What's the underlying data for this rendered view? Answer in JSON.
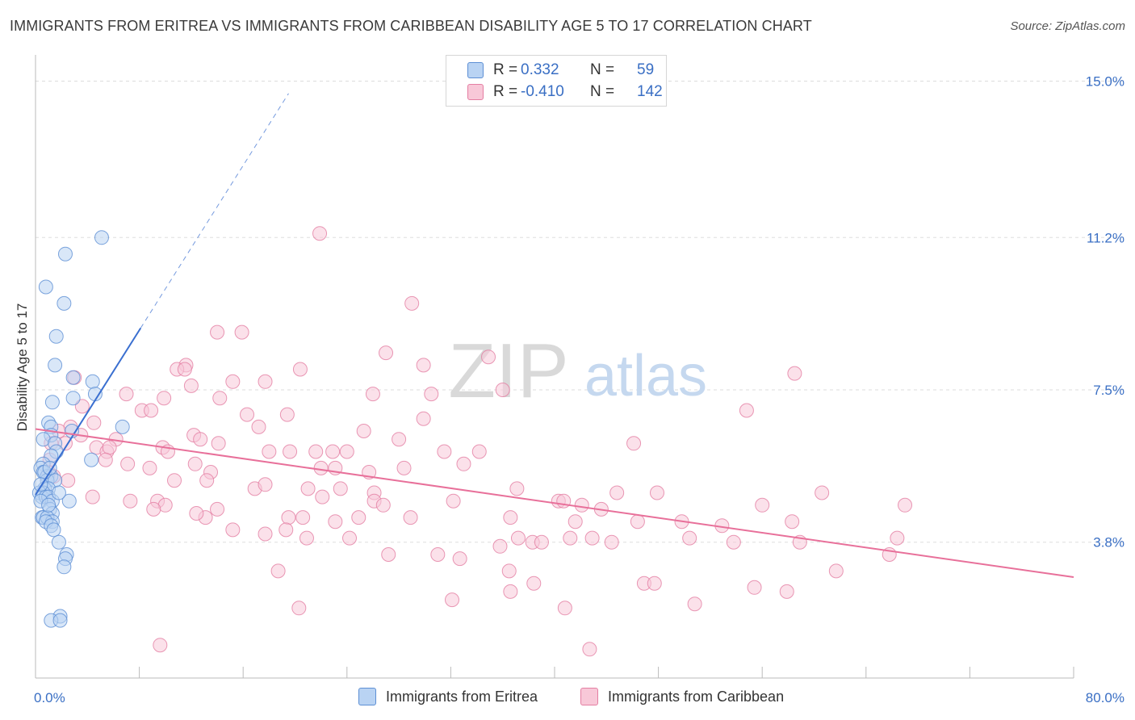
{
  "title": "IMMIGRANTS FROM ERITREA VS IMMIGRANTS FROM CARIBBEAN DISABILITY AGE 5 TO 17 CORRELATION CHART",
  "source": "Source: ZipAtlas.com",
  "watermark": {
    "part1": "ZIP",
    "part2": "atlas"
  },
  "legend_top": {
    "rows": [
      {
        "r_label": "R =",
        "r_value": "0.332",
        "n_label": "N =",
        "n_value": "59"
      },
      {
        "r_label": "R =",
        "r_value": "-0.410",
        "n_label": "N =",
        "n_value": "142"
      }
    ]
  },
  "legend_bottom": {
    "items": [
      "Immigrants from Eritrea",
      "Immigrants from Caribbean"
    ]
  },
  "colors": {
    "blue_fill": "#b9d3f3",
    "blue_stroke": "#5d8fd4",
    "blue_line": "#3a6fd0",
    "pink_fill": "#f8c8d8",
    "pink_stroke": "#e47ea2",
    "pink_line": "#e8709a",
    "axis_label": "#3a6fc4",
    "grid": "#dddddd"
  },
  "chart_data": {
    "type": "scatter",
    "title": "IMMIGRANTS FROM ERITREA VS IMMIGRANTS FROM CARIBBEAN DISABILITY AGE 5 TO 17 CORRELATION CHART",
    "xlabel": "",
    "ylabel": "Disability Age 5 to 17",
    "xlim": [
      0,
      80
    ],
    "ylim": [
      0.5,
      15.5
    ],
    "x_tick_labels": [
      {
        "value": 0,
        "label": "0.0%"
      },
      {
        "value": 80,
        "label": "80.0%"
      }
    ],
    "y_ticks": [
      {
        "value": 3.8,
        "label": "3.8%"
      },
      {
        "value": 7.5,
        "label": "7.5%"
      },
      {
        "value": 11.2,
        "label": "11.2%"
      },
      {
        "value": 15.0,
        "label": "15.0%"
      }
    ],
    "series": [
      {
        "name": "Immigrants from Eritrea",
        "R": 0.332,
        "N": 59,
        "trend": {
          "x0": 0,
          "y0": 4.95,
          "x1": 8.1,
          "y1": 9.0,
          "x_dash_end": 19.5
        },
        "points": [
          [
            5.1,
            11.2
          ],
          [
            2.3,
            10.8
          ],
          [
            0.8,
            10.0
          ],
          [
            2.2,
            9.6
          ],
          [
            1.6,
            8.8
          ],
          [
            1.5,
            8.1
          ],
          [
            2.9,
            7.8
          ],
          [
            4.4,
            7.7
          ],
          [
            4.6,
            7.4
          ],
          [
            2.9,
            7.3
          ],
          [
            1.3,
            7.2
          ],
          [
            1.0,
            6.7
          ],
          [
            1.2,
            6.6
          ],
          [
            6.7,
            6.6
          ],
          [
            2.8,
            6.5
          ],
          [
            1.2,
            6.4
          ],
          [
            0.6,
            6.3
          ],
          [
            1.5,
            6.2
          ],
          [
            1.6,
            6.0
          ],
          [
            1.2,
            5.9
          ],
          [
            4.3,
            5.8
          ],
          [
            0.6,
            5.7
          ],
          [
            0.4,
            5.6
          ],
          [
            0.6,
            5.5
          ],
          [
            0.9,
            5.4
          ],
          [
            1.2,
            5.4
          ],
          [
            0.9,
            5.3
          ],
          [
            1.5,
            5.3
          ],
          [
            0.7,
            5.1
          ],
          [
            1.0,
            5.1
          ],
          [
            0.6,
            5.0
          ],
          [
            0.3,
            5.0
          ],
          [
            0.5,
            4.9
          ],
          [
            0.8,
            4.9
          ],
          [
            1.0,
            4.9
          ],
          [
            1.3,
            4.8
          ],
          [
            0.4,
            4.8
          ],
          [
            2.6,
            4.8
          ],
          [
            1.1,
            4.6
          ],
          [
            1.3,
            4.5
          ],
          [
            0.5,
            4.4
          ],
          [
            0.6,
            4.4
          ],
          [
            0.9,
            4.4
          ],
          [
            1.3,
            4.3
          ],
          [
            0.8,
            4.3
          ],
          [
            1.2,
            4.2
          ],
          [
            1.4,
            4.1
          ],
          [
            1.8,
            3.8
          ],
          [
            2.4,
            3.5
          ],
          [
            2.3,
            3.4
          ],
          [
            2.2,
            3.2
          ],
          [
            1.9,
            2.0
          ],
          [
            1.2,
            1.9
          ],
          [
            1.9,
            1.9
          ],
          [
            0.7,
            5.5
          ],
          [
            1.1,
            5.6
          ],
          [
            0.4,
            5.2
          ],
          [
            1.8,
            5.0
          ],
          [
            1.0,
            4.7
          ]
        ]
      },
      {
        "name": "Immigrants from Caribbean",
        "R": -0.41,
        "N": 142,
        "trend": {
          "x0": 0,
          "y0": 6.55,
          "x1": 80,
          "y1": 2.95
        },
        "points": [
          [
            21.9,
            11.3
          ],
          [
            29.0,
            9.6
          ],
          [
            14.0,
            8.9
          ],
          [
            15.9,
            8.9
          ],
          [
            27.0,
            8.4
          ],
          [
            34.9,
            8.3
          ],
          [
            11.6,
            8.1
          ],
          [
            10.9,
            8.0
          ],
          [
            11.5,
            8.0
          ],
          [
            20.4,
            8.0
          ],
          [
            29.9,
            8.1
          ],
          [
            58.5,
            7.9
          ],
          [
            3.0,
            7.8
          ],
          [
            15.2,
            7.7
          ],
          [
            17.7,
            7.7
          ],
          [
            12.0,
            7.6
          ],
          [
            7.0,
            7.4
          ],
          [
            9.9,
            7.3
          ],
          [
            14.2,
            7.3
          ],
          [
            26.0,
            7.4
          ],
          [
            30.5,
            7.4
          ],
          [
            36.0,
            7.5
          ],
          [
            3.6,
            7.1
          ],
          [
            8.2,
            7.0
          ],
          [
            8.9,
            7.0
          ],
          [
            16.3,
            6.9
          ],
          [
            19.4,
            6.9
          ],
          [
            29.9,
            6.8
          ],
          [
            54.8,
            7.0
          ],
          [
            4.5,
            6.7
          ],
          [
            2.7,
            6.6
          ],
          [
            1.8,
            6.5
          ],
          [
            3.5,
            6.4
          ],
          [
            6.2,
            6.3
          ],
          [
            12.2,
            6.4
          ],
          [
            12.7,
            6.3
          ],
          [
            14.1,
            6.2
          ],
          [
            17.2,
            6.6
          ],
          [
            25.3,
            6.5
          ],
          [
            28.0,
            6.3
          ],
          [
            46.1,
            6.2
          ],
          [
            1.2,
            6.2
          ],
          [
            2.3,
            6.2
          ],
          [
            4.7,
            6.1
          ],
          [
            5.5,
            6.0
          ],
          [
            5.7,
            6.1
          ],
          [
            9.8,
            6.1
          ],
          [
            10.2,
            6.0
          ],
          [
            18.0,
            6.0
          ],
          [
            19.6,
            6.0
          ],
          [
            21.6,
            6.0
          ],
          [
            22.9,
            6.0
          ],
          [
            24.0,
            6.0
          ],
          [
            31.5,
            6.0
          ],
          [
            34.2,
            6.0
          ],
          [
            1.1,
            5.8
          ],
          [
            5.4,
            5.8
          ],
          [
            7.1,
            5.7
          ],
          [
            8.8,
            5.6
          ],
          [
            12.3,
            5.7
          ],
          [
            13.5,
            5.5
          ],
          [
            22.0,
            5.6
          ],
          [
            23.1,
            5.6
          ],
          [
            25.7,
            5.5
          ],
          [
            28.4,
            5.6
          ],
          [
            33.0,
            5.7
          ],
          [
            1.0,
            5.5
          ],
          [
            1.4,
            5.4
          ],
          [
            2.5,
            5.3
          ],
          [
            10.7,
            5.3
          ],
          [
            13.2,
            5.3
          ],
          [
            16.9,
            5.1
          ],
          [
            17.7,
            5.2
          ],
          [
            23.5,
            5.1
          ],
          [
            26.1,
            5.0
          ],
          [
            37.1,
            5.1
          ],
          [
            44.8,
            5.0
          ],
          [
            47.9,
            5.0
          ],
          [
            60.6,
            5.0
          ],
          [
            7.3,
            4.8
          ],
          [
            9.4,
            4.8
          ],
          [
            10.0,
            4.7
          ],
          [
            14.0,
            4.6
          ],
          [
            21.0,
            5.1
          ],
          [
            22.1,
            4.9
          ],
          [
            26.1,
            4.8
          ],
          [
            26.8,
            4.7
          ],
          [
            32.2,
            4.8
          ],
          [
            40.3,
            4.8
          ],
          [
            40.7,
            4.8
          ],
          [
            42.1,
            4.7
          ],
          [
            43.6,
            4.6
          ],
          [
            56.0,
            4.7
          ],
          [
            67.0,
            4.7
          ],
          [
            13.1,
            4.4
          ],
          [
            19.5,
            4.4
          ],
          [
            20.6,
            4.4
          ],
          [
            23.1,
            4.3
          ],
          [
            24.9,
            4.4
          ],
          [
            28.9,
            4.4
          ],
          [
            36.6,
            4.4
          ],
          [
            41.6,
            4.3
          ],
          [
            46.4,
            4.3
          ],
          [
            49.8,
            4.3
          ],
          [
            52.9,
            4.2
          ],
          [
            58.3,
            4.3
          ],
          [
            66.4,
            3.9
          ],
          [
            4.4,
            4.9
          ],
          [
            15.2,
            4.1
          ],
          [
            17.7,
            4.0
          ],
          [
            19.3,
            4.1
          ],
          [
            24.2,
            3.9
          ],
          [
            35.8,
            3.7
          ],
          [
            37.2,
            3.9
          ],
          [
            38.3,
            3.8
          ],
          [
            39.0,
            3.8
          ],
          [
            41.2,
            3.9
          ],
          [
            42.9,
            3.9
          ],
          [
            44.4,
            3.8
          ],
          [
            50.4,
            3.9
          ],
          [
            53.8,
            3.8
          ],
          [
            58.9,
            3.8
          ],
          [
            65.8,
            3.5
          ],
          [
            9.1,
            4.6
          ],
          [
            12.4,
            4.5
          ],
          [
            20.9,
            3.9
          ],
          [
            27.2,
            3.5
          ],
          [
            31.0,
            3.5
          ],
          [
            32.7,
            3.4
          ],
          [
            36.5,
            3.1
          ],
          [
            38.4,
            2.8
          ],
          [
            46.9,
            2.8
          ],
          [
            47.7,
            2.8
          ],
          [
            50.8,
            2.3
          ],
          [
            61.7,
            3.1
          ],
          [
            55.4,
            2.7
          ],
          [
            57.9,
            2.6
          ],
          [
            9.6,
            1.3
          ],
          [
            20.3,
            2.2
          ],
          [
            18.7,
            3.1
          ],
          [
            42.7,
            1.2
          ],
          [
            36.6,
            2.6
          ],
          [
            40.8,
            2.2
          ],
          [
            32.1,
            2.4
          ]
        ]
      }
    ]
  }
}
